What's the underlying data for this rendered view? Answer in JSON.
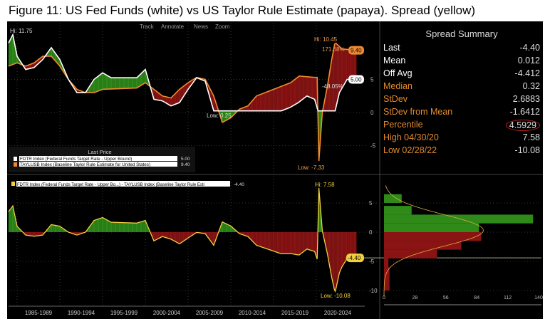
{
  "title": "Figure 11: US Fed Funds (white) vs US Taylor Rule Estimate (papaya). Spread (yellow)",
  "toolbar": [
    "Track",
    "Annotate",
    "News",
    "Zoom"
  ],
  "summary": {
    "title": "Spread Summary",
    "rows": [
      {
        "label": "Last",
        "value": "-4.40",
        "color": "#ffffff"
      },
      {
        "label": "Mean",
        "value": "0.012",
        "color": "#ffffff"
      },
      {
        "label": "Off Avg",
        "value": "-4.412",
        "color": "#ffffff"
      },
      {
        "label": "Median",
        "value": "0.32",
        "color": "#e08a2c"
      },
      {
        "label": "StDev",
        "value": "2.6883",
        "color": "#e08a2c"
      },
      {
        "label": "StDev from Mean",
        "value": "-1.6412",
        "color": "#e08a2c"
      },
      {
        "label": "Percentile",
        "value": "4.5929",
        "color": "#e08a2c",
        "circled": true
      },
      {
        "label": "High 04/30/20",
        "value": "7.58",
        "color": "#e08a2c"
      },
      {
        "label": "Low 02/28/22",
        "value": "-10.08",
        "color": "#e08a2c"
      }
    ]
  },
  "chart_data": [
    {
      "type": "line",
      "panel": "upper",
      "legend_title": "Last Price",
      "series": [
        {
          "name": "FDTR Index (Federal Funds Target Rate - Upper Bound)",
          "last": "5.00",
          "color": "#ffffff",
          "points": [
            [
              1984,
              10.5
            ],
            [
              1984.5,
              11.75
            ],
            [
              1985,
              8.5
            ],
            [
              1986,
              6.5
            ],
            [
              1987,
              6.8
            ],
            [
              1988,
              8
            ],
            [
              1989,
              9.8
            ],
            [
              1990,
              8
            ],
            [
              1991,
              5
            ],
            [
              1992,
              3
            ],
            [
              1993,
              3
            ],
            [
              1994,
              5
            ],
            [
              1995,
              6
            ],
            [
              1996,
              5.25
            ],
            [
              1999,
              5.25
            ],
            [
              2000,
              6.5
            ],
            [
              2001,
              2
            ],
            [
              2002,
              1.75
            ],
            [
              2003,
              1
            ],
            [
              2004,
              1.5
            ],
            [
              2005,
              3.5
            ],
            [
              2006,
              5.25
            ],
            [
              2007,
              4.75
            ],
            [
              2008,
              0.25
            ],
            [
              2015.9,
              0.25
            ],
            [
              2016.9,
              0.75
            ],
            [
              2017.9,
              1.5
            ],
            [
              2018.9,
              2.5
            ],
            [
              2019.8,
              2
            ],
            [
              2020.2,
              0.25
            ],
            [
              2022.2,
              0.25
            ],
            [
              2022.7,
              3
            ],
            [
              2023.6,
              5
            ],
            [
              2024.6,
              5
            ]
          ]
        },
        {
          "name": "TAYLUSB Index (Baseline Taylor Rule Estimate for United States)",
          "last": "9.40",
          "color": "#f08a30",
          "points": [
            [
              1984,
              7
            ],
            [
              1985,
              7.5
            ],
            [
              1986,
              7
            ],
            [
              1987,
              7.5
            ],
            [
              1988,
              8.5
            ],
            [
              1989,
              8.5
            ],
            [
              1990,
              7
            ],
            [
              1991,
              5
            ],
            [
              1992,
              3.5
            ],
            [
              1993,
              3
            ],
            [
              1994,
              3
            ],
            [
              1995,
              3.5
            ],
            [
              1999,
              3.7
            ],
            [
              2000,
              4.5
            ],
            [
              2001,
              3.5
            ],
            [
              2002,
              2.5
            ],
            [
              2003,
              2.2
            ],
            [
              2004,
              3.5
            ],
            [
              2005,
              4.5
            ],
            [
              2006,
              5.3
            ],
            [
              2007,
              5
            ],
            [
              2008,
              2.5
            ],
            [
              2009,
              -1.5
            ],
            [
              2010,
              -0.8
            ],
            [
              2011,
              0.5
            ],
            [
              2012,
              1
            ],
            [
              2013,
              2.5
            ],
            [
              2014,
              3
            ],
            [
              2015,
              3.5
            ],
            [
              2016,
              4
            ],
            [
              2017,
              4.5
            ],
            [
              2018,
              5.5
            ],
            [
              2019.8,
              5.3
            ],
            [
              2020.1,
              5.3
            ],
            [
              2020.3,
              -7.33
            ],
            [
              2020.7,
              0
            ],
            [
              2021.3,
              4
            ],
            [
              2021.8,
              8
            ],
            [
              2022.15,
              10.33
            ],
            [
              2022.3,
              10.45
            ],
            [
              2023,
              9.6
            ],
            [
              2024.6,
              9.4
            ]
          ]
        }
      ],
      "annotations": [
        "Hi: 11.75",
        "Hi: 10.45",
        "Low: 0.25",
        "Low: -7.33",
        "171.68%",
        "-48.05%"
      ],
      "yticks": [
        -5,
        0,
        5
      ],
      "ylim": [
        -8,
        13
      ]
    },
    {
      "type": "area",
      "panel": "lower",
      "legend": "FDTR Index (Federal Funds Target Rate - Upper Bo...) - TAYLUSB Index (Baseline Taylor Rule Esti",
      "last": "-4.40",
      "annotations": [
        "Hi: 7.58",
        "Low: -10.08"
      ],
      "yticks": [
        -10,
        -5,
        0,
        5
      ],
      "ylim": [
        -11,
        9
      ],
      "xticks": [
        "1985-1989",
        "1990-1994",
        "1995-1999",
        "2000-2004",
        "2005-2009",
        "2010-2014",
        "2015-2019",
        "2020-2024"
      ],
      "spread": "FDTR - TAYLUSB"
    },
    {
      "type": "bar",
      "panel": "histogram",
      "orientation": "horizontal",
      "xticks": [
        0,
        28,
        56,
        84,
        112,
        140
      ],
      "bins": [
        [
          5,
          6.5,
          16
        ],
        [
          3,
          4.5,
          25
        ],
        [
          1.5,
          3,
          135
        ],
        [
          0,
          1.5,
          86
        ],
        [
          -1.5,
          0,
          88
        ],
        [
          -3,
          -1.5,
          70
        ],
        [
          -4.5,
          -3,
          48
        ],
        [
          -6,
          -4.5,
          4
        ],
        [
          -10,
          -6,
          5
        ]
      ]
    }
  ],
  "colors": {
    "green": "#2f8a1a",
    "red": "#8a1414",
    "yellow": "#f0d040",
    "orange": "#f08a30"
  }
}
